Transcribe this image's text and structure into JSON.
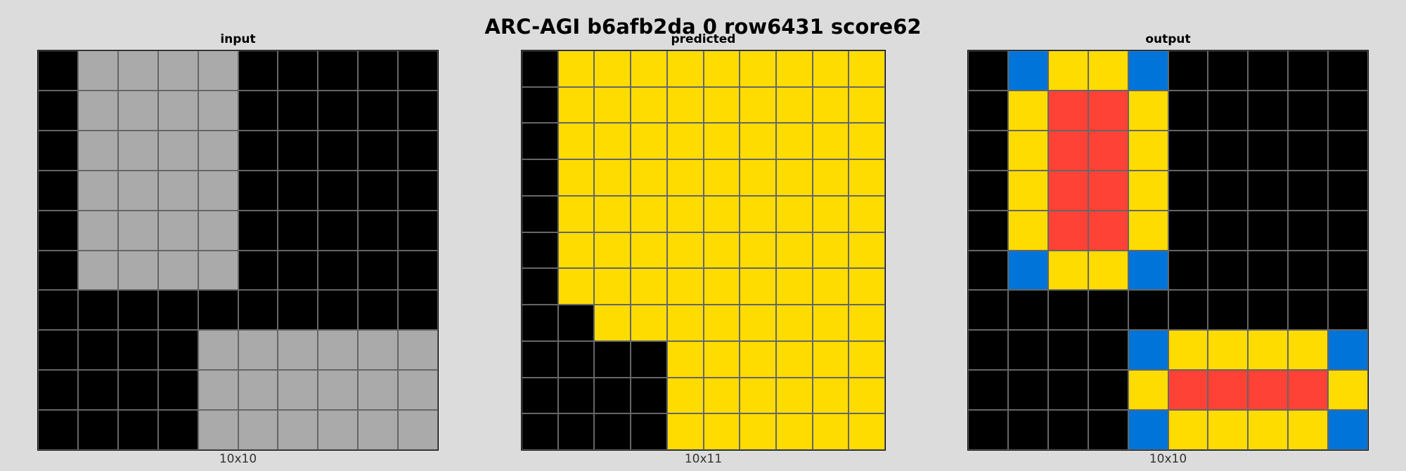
{
  "title": "ARC-AGI b6afb2da 0 row6431 score62",
  "palette": {
    "0": "#000000",
    "1": "#0074D9",
    "2": "#FF4136",
    "3": "#2ECC40",
    "4": "#FFDC00",
    "5": "#AAAAAA",
    "6": "#F012BE",
    "7": "#FF851B",
    "8": "#7FDBFF",
    "9": "#870C25"
  },
  "panels": {
    "input": {
      "label": "input",
      "dims": "10x10",
      "grid": [
        [
          0,
          5,
          5,
          5,
          5,
          0,
          0,
          0,
          0,
          0
        ],
        [
          0,
          5,
          5,
          5,
          5,
          0,
          0,
          0,
          0,
          0
        ],
        [
          0,
          5,
          5,
          5,
          5,
          0,
          0,
          0,
          0,
          0
        ],
        [
          0,
          5,
          5,
          5,
          5,
          0,
          0,
          0,
          0,
          0
        ],
        [
          0,
          5,
          5,
          5,
          5,
          0,
          0,
          0,
          0,
          0
        ],
        [
          0,
          5,
          5,
          5,
          5,
          0,
          0,
          0,
          0,
          0
        ],
        [
          0,
          0,
          0,
          0,
          0,
          0,
          0,
          0,
          0,
          0
        ],
        [
          0,
          0,
          0,
          0,
          5,
          5,
          5,
          5,
          5,
          5
        ],
        [
          0,
          0,
          0,
          0,
          5,
          5,
          5,
          5,
          5,
          5
        ],
        [
          0,
          0,
          0,
          0,
          5,
          5,
          5,
          5,
          5,
          5
        ]
      ]
    },
    "predicted": {
      "label": "predicted",
      "dims": "10x11",
      "grid": [
        [
          0,
          4,
          4,
          4,
          4,
          4,
          4,
          4,
          4,
          4
        ],
        [
          0,
          4,
          4,
          4,
          4,
          4,
          4,
          4,
          4,
          4
        ],
        [
          0,
          4,
          4,
          4,
          4,
          4,
          4,
          4,
          4,
          4
        ],
        [
          0,
          4,
          4,
          4,
          4,
          4,
          4,
          4,
          4,
          4
        ],
        [
          0,
          4,
          4,
          4,
          4,
          4,
          4,
          4,
          4,
          4
        ],
        [
          0,
          4,
          4,
          4,
          4,
          4,
          4,
          4,
          4,
          4
        ],
        [
          0,
          4,
          4,
          4,
          4,
          4,
          4,
          4,
          4,
          4
        ],
        [
          0,
          0,
          4,
          4,
          4,
          4,
          4,
          4,
          4,
          4
        ],
        [
          0,
          0,
          0,
          0,
          4,
          4,
          4,
          4,
          4,
          4
        ],
        [
          0,
          0,
          0,
          0,
          4,
          4,
          4,
          4,
          4,
          4
        ],
        [
          0,
          0,
          0,
          0,
          4,
          4,
          4,
          4,
          4,
          4
        ]
      ]
    },
    "output": {
      "label": "output",
      "dims": "10x10",
      "grid": [
        [
          0,
          1,
          4,
          4,
          1,
          0,
          0,
          0,
          0,
          0
        ],
        [
          0,
          4,
          2,
          2,
          4,
          0,
          0,
          0,
          0,
          0
        ],
        [
          0,
          4,
          2,
          2,
          4,
          0,
          0,
          0,
          0,
          0
        ],
        [
          0,
          4,
          2,
          2,
          4,
          0,
          0,
          0,
          0,
          0
        ],
        [
          0,
          4,
          2,
          2,
          4,
          0,
          0,
          0,
          0,
          0
        ],
        [
          0,
          1,
          4,
          4,
          1,
          0,
          0,
          0,
          0,
          0
        ],
        [
          0,
          0,
          0,
          0,
          0,
          0,
          0,
          0,
          0,
          0
        ],
        [
          0,
          0,
          0,
          0,
          1,
          4,
          4,
          4,
          4,
          1
        ],
        [
          0,
          0,
          0,
          0,
          4,
          2,
          2,
          2,
          2,
          4
        ],
        [
          0,
          0,
          0,
          0,
          1,
          4,
          4,
          4,
          4,
          1
        ]
      ]
    }
  }
}
